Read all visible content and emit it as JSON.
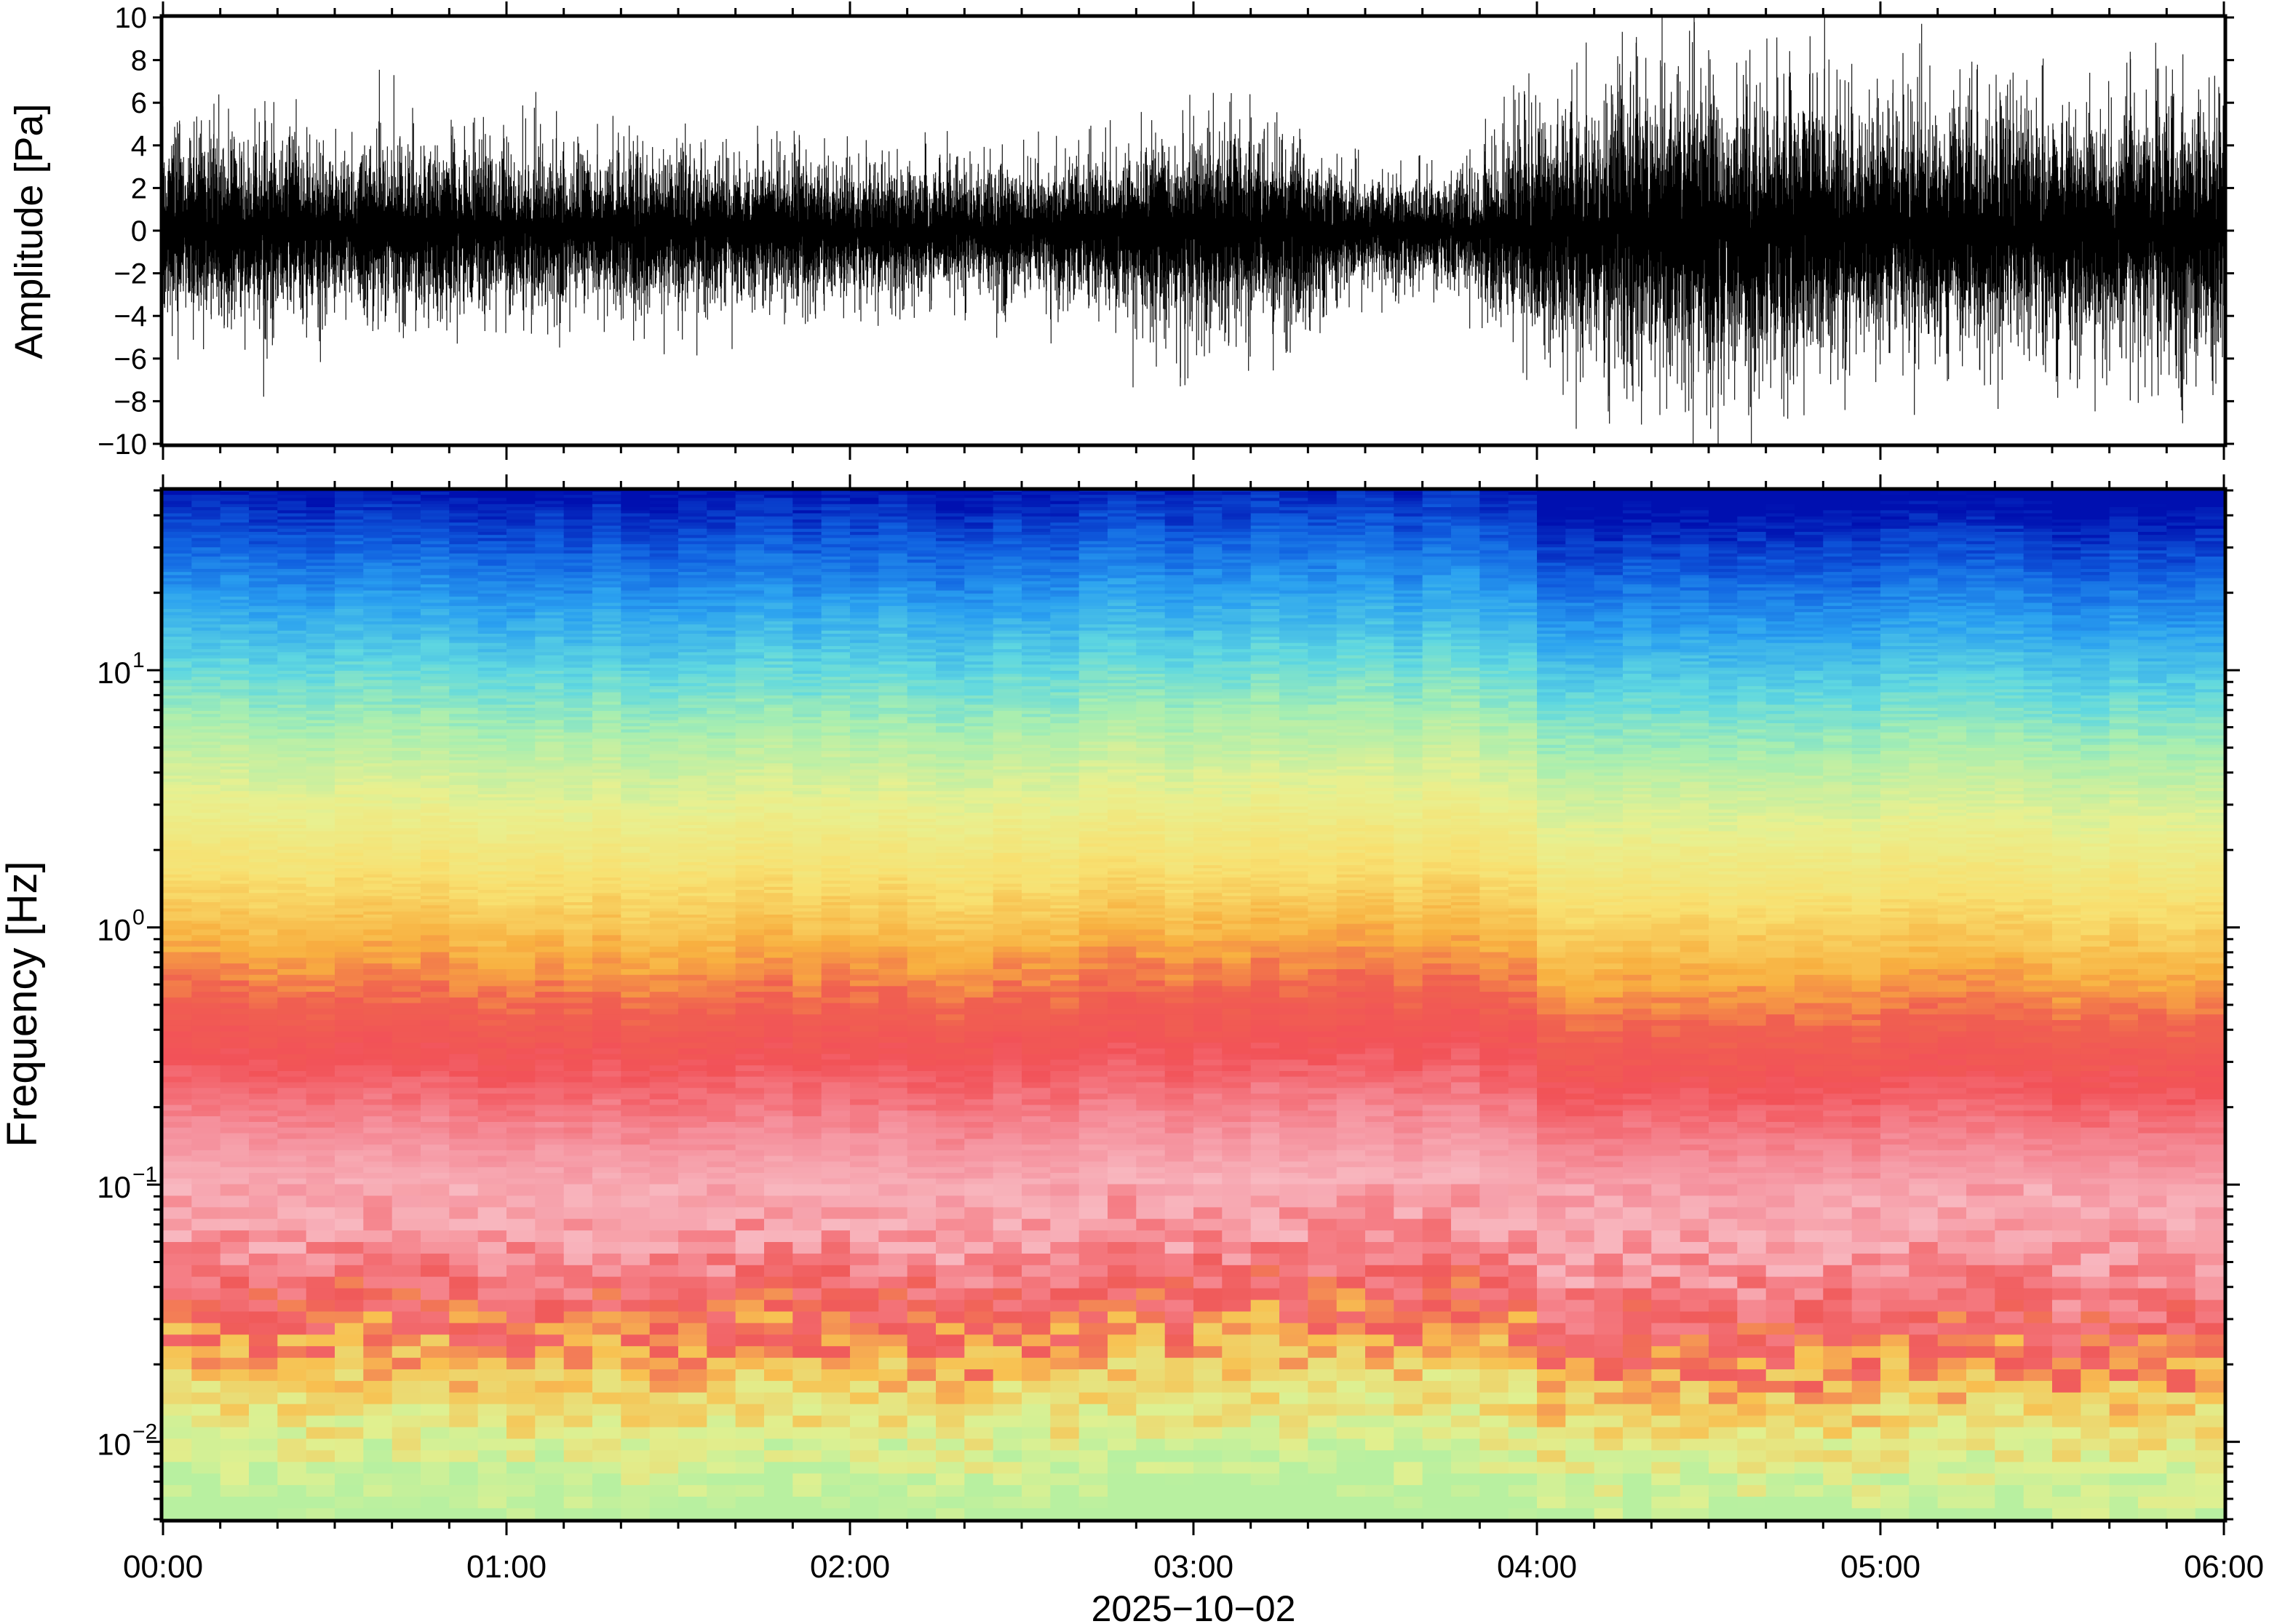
{
  "chart_data": [
    {
      "type": "line",
      "panel": "waveform",
      "ylabel": "Amplitude [Pa]",
      "ylim": [
        -10,
        10
      ],
      "yticks": [
        10,
        8,
        6,
        4,
        2,
        0,
        -2,
        -4,
        -6,
        -8,
        -10
      ],
      "ytick_labels": [
        "10",
        "8",
        "6",
        "4",
        "2",
        "0",
        "−2",
        "−4",
        "−6",
        "−8",
        "−10"
      ],
      "xlim": [
        "00:00",
        "06:00"
      ],
      "envelope": {
        "description_units": "Pa",
        "time_hours": [
          0.0,
          0.5,
          1.0,
          1.5,
          2.0,
          2.5,
          3.0,
          3.25,
          3.5,
          3.75,
          4.0,
          4.25,
          4.5,
          4.75,
          5.0,
          5.5,
          6.0
        ],
        "typical_half_range": [
          3.0,
          2.8,
          2.6,
          2.4,
          2.2,
          2.0,
          3.2,
          3.0,
          1.8,
          1.6,
          3.6,
          4.6,
          4.8,
          4.4,
          4.0,
          3.8,
          4.2
        ],
        "peak_half_range": [
          5.5,
          5.0,
          5.5,
          4.5,
          4.5,
          4.0,
          6.5,
          7.0,
          4.0,
          3.5,
          8.0,
          9.5,
          10.0,
          9.0,
          8.0,
          8.0,
          10.0
        ]
      },
      "line_color": "#000000"
    },
    {
      "type": "heatmap",
      "panel": "spectrogram",
      "ylabel": "Frequency [Hz]",
      "y_scale": "log",
      "ylim": [
        0.005,
        50
      ],
      "yticks": [
        0.01,
        0.1,
        1,
        10
      ],
      "ytick_labels": [
        {
          "base": "10",
          "exp": "−2"
        },
        {
          "base": "10",
          "exp": "−1"
        },
        {
          "base": "10",
          "exp": "0"
        },
        {
          "base": "10",
          "exp": "1"
        }
      ],
      "xlabel": "2025−10−02",
      "xtick_labels": [
        "00:00",
        "01:00",
        "02:00",
        "03:00",
        "04:00",
        "05:00",
        "06:00"
      ],
      "xlim_hours": [
        0,
        6
      ],
      "colormap": [
        "#0000c8",
        "#1a8cff",
        "#4fd0f0",
        "#a8f0a8",
        "#f0f080",
        "#ffc040",
        "#f55050",
        "#f8b8c0"
      ],
      "band_colors_by_frequency_hz": [
        {
          "f": 50,
          "color": "#0010b0"
        },
        {
          "f": 30,
          "color": "#1060e0"
        },
        {
          "f": 18,
          "color": "#2aa0f0"
        },
        {
          "f": 10,
          "color": "#60d8e0"
        },
        {
          "f": 6,
          "color": "#a8eeb0"
        },
        {
          "f": 3,
          "color": "#e8f090"
        },
        {
          "f": 1.5,
          "color": "#f8e070"
        },
        {
          "f": 0.8,
          "color": "#f8b040"
        },
        {
          "f": 0.5,
          "color": "#f06050"
        },
        {
          "f": 0.3,
          "color": "#f25258"
        },
        {
          "f": 0.15,
          "color": "#f5909c"
        },
        {
          "f": 0.08,
          "color": "#f8b8c0"
        },
        {
          "f": 0.05,
          "color": "#f58088"
        },
        {
          "f": 0.03,
          "color": "#f05a5a"
        },
        {
          "f": 0.02,
          "color": "#f8c050"
        },
        {
          "f": 0.01,
          "color": "#e0f090"
        },
        {
          "f": 0.006,
          "color": "#b8f0a0"
        }
      ]
    }
  ]
}
